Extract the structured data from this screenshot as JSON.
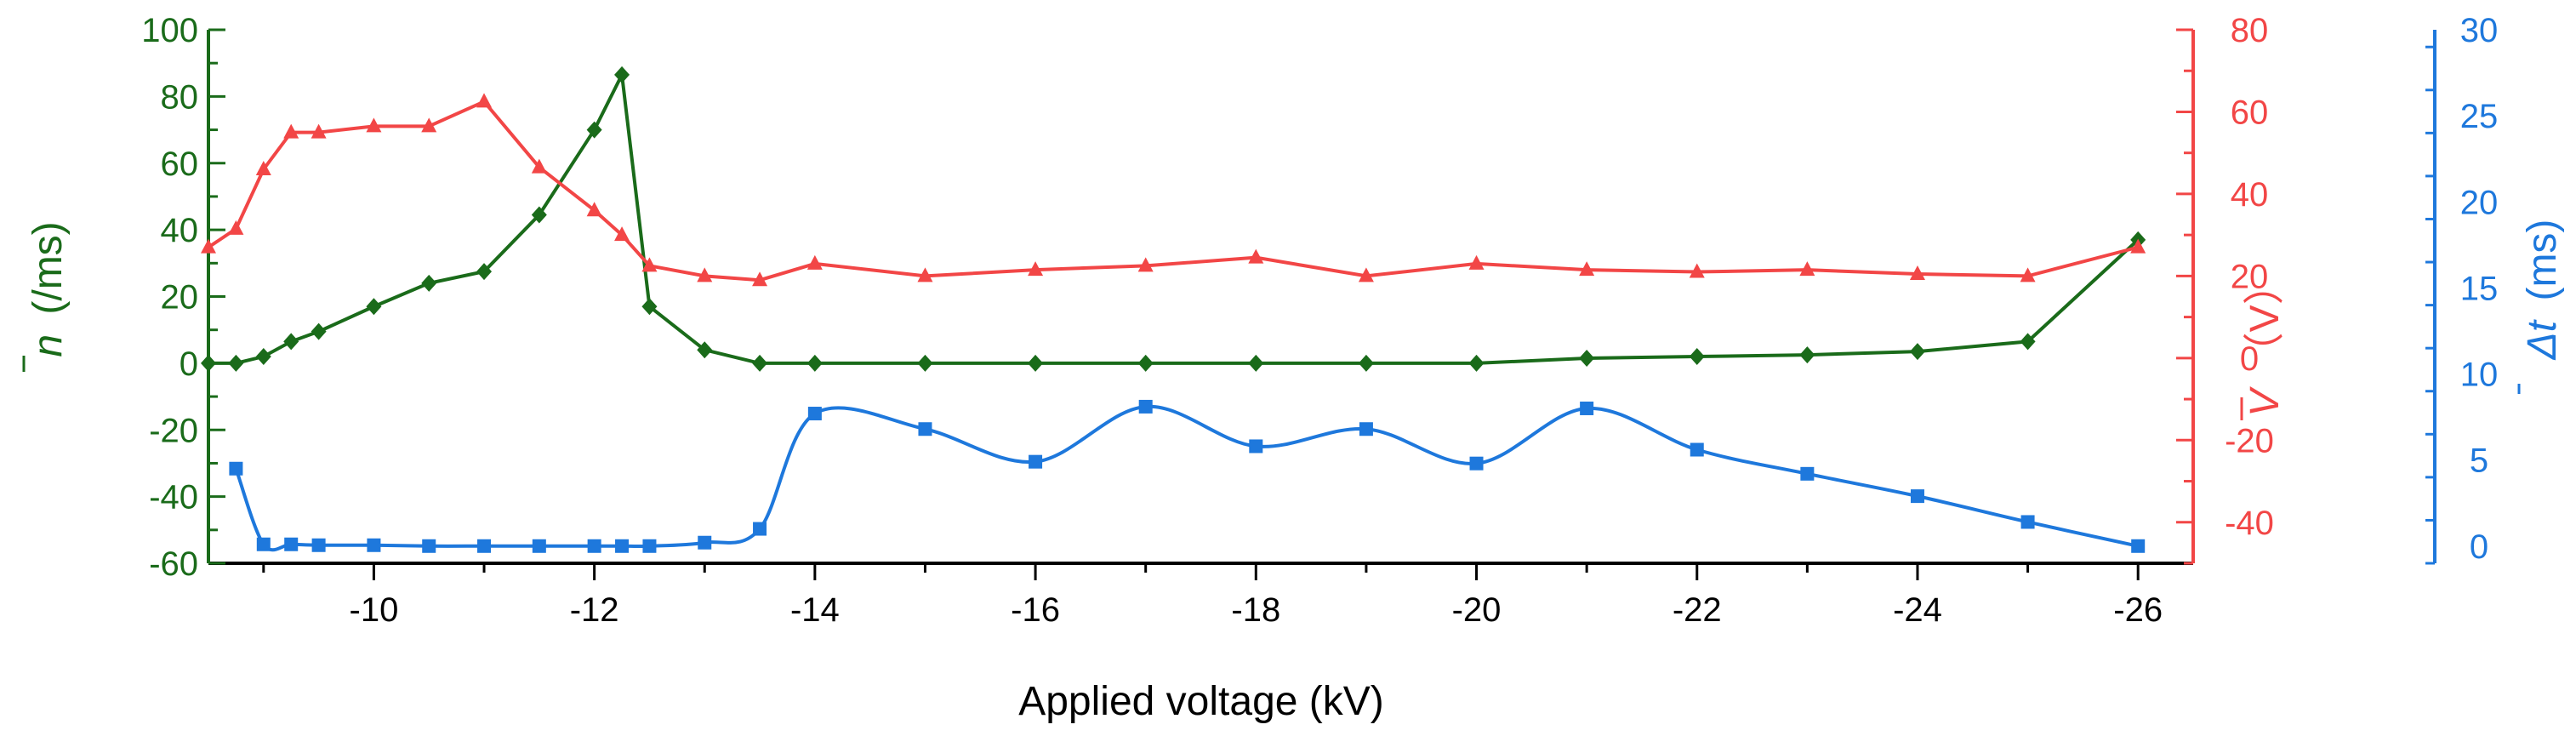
{
  "chart_data": {
    "type": "line",
    "xlabel": "Applied voltage (kV)",
    "xlim": [
      -8.5,
      -26.5
    ],
    "x_ticks": [
      -10,
      -12,
      -14,
      -16,
      -18,
      -20,
      -22,
      -24,
      -26
    ],
    "axes": [
      {
        "id": "n",
        "side": "left",
        "label_symbol": "n",
        "label_unit": "(/ms)",
        "color": "#1a6b1a",
        "ylim": [
          -60,
          100
        ],
        "ticks": [
          -60,
          -40,
          -20,
          0,
          20,
          40,
          60,
          80,
          100
        ]
      },
      {
        "id": "V",
        "side": "right",
        "label_symbol": "V",
        "label_unit": "（V）",
        "color": "#f24646",
        "ylim": [
          -50,
          80
        ],
        "ticks": [
          -40,
          -20,
          0,
          20,
          40,
          60,
          80
        ]
      },
      {
        "id": "t",
        "side": "right-outer",
        "label_symbol": "Δt",
        "label_unit": "(ms)",
        "color": "#1e78dc",
        "ylim": [
          -1,
          30
        ],
        "ticks": [
          0,
          5,
          10,
          15,
          20,
          25,
          30
        ]
      }
    ],
    "series": [
      {
        "name": "n",
        "axis": "n",
        "marker": "diamond",
        "smooth": false,
        "x": [
          -8.5,
          -8.75,
          -9,
          -9.25,
          -9.5,
          -10,
          -10.5,
          -11,
          -11.5,
          -12,
          -12.25,
          -12.5,
          -13,
          -13.5,
          -14,
          -15,
          -16,
          -17,
          -18,
          -19,
          -20,
          -21,
          -22,
          -23,
          -24,
          -25,
          -26
        ],
        "values": [
          0,
          0,
          2,
          6.5,
          9.5,
          17,
          24,
          27.5,
          44.5,
          70,
          86.5,
          17,
          4,
          0,
          0,
          0,
          0,
          0,
          0,
          0,
          0,
          1.5,
          2,
          2.5,
          3.5,
          6.5,
          37
        ]
      },
      {
        "name": "V",
        "axis": "V",
        "marker": "triangle",
        "smooth": false,
        "x": [
          -8.5,
          -8.75,
          -9,
          -9.25,
          -9.5,
          -10,
          -10.5,
          -11,
          -11.5,
          -12,
          -12.25,
          -12.5,
          -13,
          -13.5,
          -14,
          -15,
          -16,
          -17,
          -18,
          -19,
          -20,
          -21,
          -22,
          -23,
          -24,
          -25,
          -26
        ],
        "values": [
          27,
          31.5,
          46,
          55,
          55,
          56.5,
          56.5,
          62.5,
          46.5,
          36,
          30,
          22.5,
          20,
          19,
          23,
          20,
          21.5,
          22.5,
          24.5,
          20,
          23,
          21.5,
          21,
          21.5,
          20.5,
          20,
          27
        ]
      },
      {
        "name": "Δt",
        "axis": "t",
        "marker": "square",
        "smooth": true,
        "x": [
          -8.75,
          -9,
          -9.25,
          -9.5,
          -10,
          -10.5,
          -11,
          -11.5,
          -12,
          -12.25,
          -12.5,
          -13,
          -13.5,
          -14,
          -15,
          -16,
          -17,
          -18,
          -19,
          -20,
          -21,
          -22,
          -23,
          -24,
          -25,
          -26
        ],
        "values": [
          4.5,
          0.1,
          0.1,
          0.05,
          0.05,
          0.0,
          0.0,
          0.0,
          0.0,
          0.0,
          0.0,
          0.2,
          1.0,
          7.7,
          6.8,
          4.9,
          8.1,
          5.8,
          6.8,
          4.8,
          8.0,
          5.6,
          4.2,
          2.9,
          1.4,
          0.0
        ]
      }
    ]
  }
}
